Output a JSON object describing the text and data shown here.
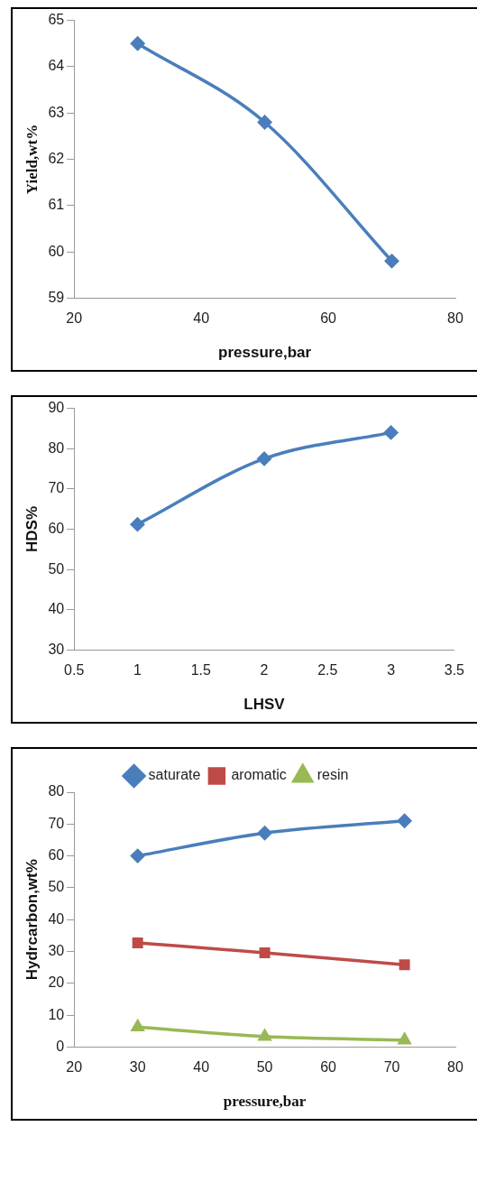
{
  "chart_data": [
    {
      "type": "line",
      "x": [
        30,
        50,
        70
      ],
      "values": [
        64.5,
        62.8,
        59.8
      ],
      "color": "#4a7ebb",
      "marker": "diamond",
      "xlabel": "pressure,bar",
      "ylabel": "Yield,wt%",
      "xlim": [
        20,
        80
      ],
      "xticks": [
        20,
        40,
        60,
        80
      ],
      "ylim": [
        59,
        65
      ],
      "yticks": [
        59,
        60,
        61,
        62,
        63,
        64,
        65
      ],
      "grid": false
    },
    {
      "type": "line",
      "x": [
        1,
        2,
        3
      ],
      "values": [
        61.2,
        77.5,
        84
      ],
      "color": "#4a7ebb",
      "marker": "diamond",
      "xlabel": "LHSV",
      "ylabel": "HDS%",
      "xlim": [
        0.5,
        3.5
      ],
      "xticks": [
        0.5,
        1,
        1.5,
        2,
        2.5,
        3,
        3.5
      ],
      "ylim": [
        30,
        90
      ],
      "yticks": [
        30,
        40,
        50,
        60,
        70,
        80,
        90
      ],
      "grid": false
    },
    {
      "type": "line",
      "x": [
        30,
        50,
        72
      ],
      "xlabel": "pressure,bar",
      "ylabel": "Hydrcarbon,wt%",
      "xlim": [
        20,
        80
      ],
      "xticks": [
        20,
        30,
        40,
        50,
        60,
        70,
        80
      ],
      "ylim": [
        0,
        80
      ],
      "yticks": [
        0,
        10,
        20,
        30,
        40,
        50,
        60,
        70,
        80
      ],
      "grid": false,
      "legend": "top",
      "series": [
        {
          "name": "saturate",
          "color": "#4a7ebb",
          "marker": "diamond",
          "values": [
            60,
            67.2,
            71
          ]
        },
        {
          "name": "aromatic",
          "color": "#be4b48",
          "marker": "square",
          "values": [
            32.7,
            29.6,
            25.8
          ]
        },
        {
          "name": "resin",
          "color": "#98b954",
          "marker": "triangle",
          "values": [
            6.3,
            3.3,
            2.2
          ]
        }
      ]
    }
  ]
}
